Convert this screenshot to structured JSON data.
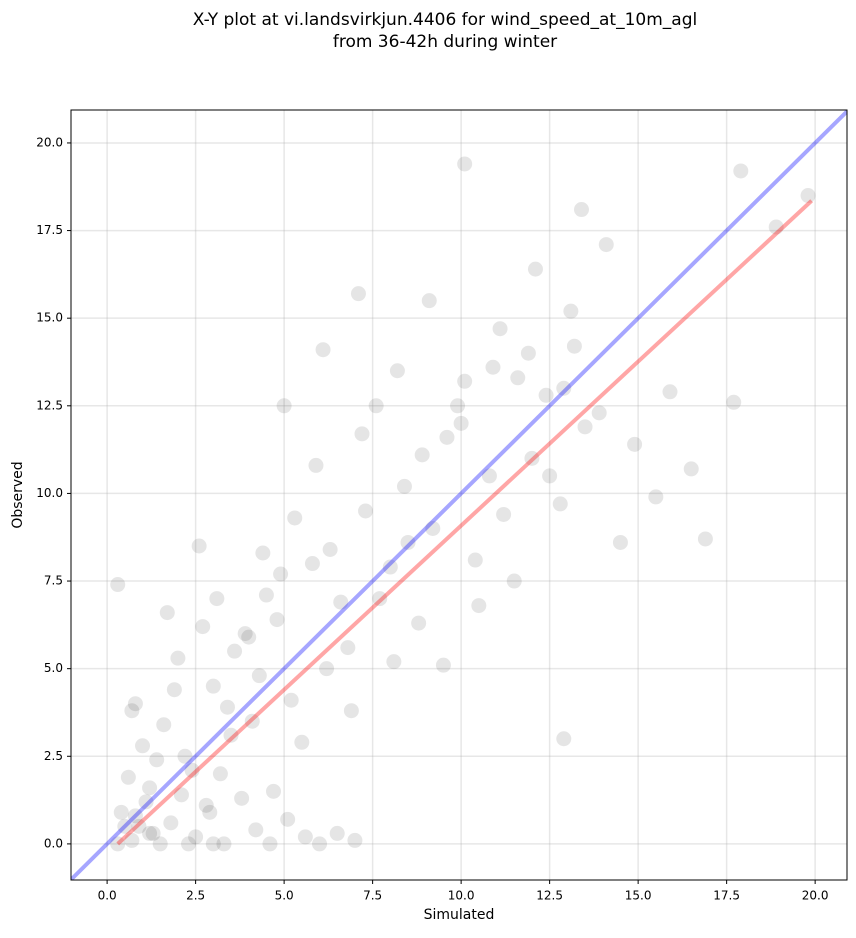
{
  "chart_data": {
    "type": "scatter",
    "title": "X-Y plot at vi.landsvirkjun.4406 for wind_speed_at_10m_agl",
    "subtitle": "from 36-42h during winter",
    "xlabel": "Simulated",
    "ylabel": "Observed",
    "xlim": [
      -1.02,
      20.9
    ],
    "ylim": [
      -1.03,
      20.94
    ],
    "xticks": [
      {
        "value": 0,
        "label": "0.0"
      },
      {
        "value": 2.5,
        "label": "2.5"
      },
      {
        "value": 5,
        "label": "5.0"
      },
      {
        "value": 7.5,
        "label": "7.5"
      },
      {
        "value": 10,
        "label": "10.0"
      },
      {
        "value": 12.5,
        "label": "12.5"
      },
      {
        "value": 15,
        "label": "15.0"
      },
      {
        "value": 17.5,
        "label": "17.5"
      },
      {
        "value": 20,
        "label": "20.0"
      }
    ],
    "yticks": [
      {
        "value": 0,
        "label": "0.0"
      },
      {
        "value": 2.5,
        "label": "2.5"
      },
      {
        "value": 5,
        "label": "5.0"
      },
      {
        "value": 7.5,
        "label": "7.5"
      },
      {
        "value": 10,
        "label": "10.0"
      },
      {
        "value": 12.5,
        "label": "12.5"
      },
      {
        "value": 15,
        "label": "15.0"
      },
      {
        "value": 17.5,
        "label": "17.5"
      },
      {
        "value": 20,
        "label": "20.0"
      }
    ],
    "grid": true,
    "color": "#000000",
    "alpha": 0.1,
    "x": [
      0.7,
      0.9,
      1.1,
      1.3,
      0.8,
      1.5,
      1.8,
      2.1,
      2.5,
      2.9,
      3.3,
      3.8,
      4.2,
      4.6,
      5.1,
      5.6,
      6.0,
      6.5,
      7.0,
      0.4,
      0.6,
      1.0,
      1.2,
      1.6,
      2.0,
      2.4,
      3.0,
      3.5,
      4.0,
      0.3,
      0.5,
      1.4,
      1.9,
      2.7,
      3.1,
      4.4,
      0.8,
      1.7,
      2.2,
      2.6,
      3.2,
      3.6,
      4.1,
      4.5,
      4.8,
      5.2,
      5.5,
      5.8,
      6.2,
      6.6,
      6.9,
      7.3,
      7.7,
      8.1,
      8.5,
      2.8,
      3.4,
      3.9,
      4.3,
      4.9,
      5.3,
      5.9,
      6.3,
      6.8,
      7.2,
      7.6,
      8.0,
      8.4,
      8.8,
      9.2,
      9.6,
      10.0,
      10.4,
      10.8,
      11.2,
      11.6,
      12.0,
      12.4,
      12.8,
      13.2,
      5.0,
      6.1,
      7.1,
      8.2,
      9.1,
      10.1,
      11.1,
      12.1,
      13.1,
      14.1,
      9.5,
      10.5,
      11.5,
      12.5,
      13.5,
      14.5,
      15.5,
      16.5,
      17.7,
      19.8,
      8.9,
      9.9,
      10.9,
      11.9,
      12.9,
      13.9,
      14.9,
      15.9,
      16.9,
      10.1,
      0.3,
      0.7,
      1.2,
      2.3,
      4.7,
      3.0,
      12.9,
      13.4,
      18.9,
      17.9
    ],
    "y": [
      0.1,
      0.5,
      1.2,
      0.3,
      0.8,
      0.0,
      0.6,
      1.4,
      0.2,
      0.9,
      0.0,
      1.3,
      0.4,
      0.0,
      0.7,
      0.2,
      0.0,
      0.3,
      0.1,
      0.9,
      1.9,
      2.8,
      1.6,
      3.4,
      5.3,
      2.1,
      4.5,
      3.1,
      5.9,
      7.4,
      0.5,
      2.4,
      4.4,
      6.2,
      7.0,
      8.3,
      4.0,
      6.6,
      2.5,
      8.5,
      2.0,
      5.5,
      3.5,
      7.1,
      6.4,
      4.1,
      2.9,
      8.0,
      5.0,
      6.9,
      3.8,
      9.5,
      7.0,
      5.2,
      8.6,
      1.1,
      3.9,
      6.0,
      4.8,
      7.7,
      9.3,
      10.8,
      8.4,
      5.6,
      11.7,
      12.5,
      7.9,
      10.2,
      6.3,
      9.0,
      11.6,
      12.0,
      8.1,
      10.5,
      9.4,
      13.3,
      11.0,
      12.8,
      9.7,
      14.2,
      12.5,
      14.1,
      15.7,
      13.5,
      15.5,
      13.2,
      14.7,
      16.4,
      15.2,
      17.1,
      5.1,
      6.8,
      7.5,
      10.5,
      11.9,
      8.6,
      9.9,
      10.7,
      12.6,
      18.5,
      11.1,
      12.5,
      13.6,
      14.0,
      13.0,
      12.3,
      11.4,
      12.9,
      8.7,
      19.4,
      0.0,
      3.8,
      0.3,
      0.0,
      1.5,
      0.0,
      3.0,
      18.1,
      17.6,
      19.2
    ],
    "lines": [
      {
        "color": "#0000ff",
        "x": [
          -1.02,
          20.9
        ],
        "y": [
          -1.02,
          20.9
        ]
      },
      {
        "color": "#ff0000",
        "x": [
          0.3,
          19.9
        ],
        "y": [
          0.0,
          18.35
        ]
      }
    ]
  }
}
